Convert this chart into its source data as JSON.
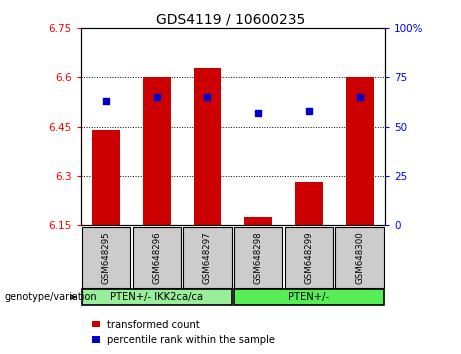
{
  "title": "GDS4119 / 10600235",
  "samples": [
    "GSM648295",
    "GSM648296",
    "GSM648297",
    "GSM648298",
    "GSM648299",
    "GSM648300"
  ],
  "bar_values": [
    6.44,
    6.6,
    6.63,
    6.175,
    6.28,
    6.6
  ],
  "bar_bottom": 6.15,
  "percentile_values": [
    63,
    65,
    65,
    57,
    58,
    65
  ],
  "ylim_left": [
    6.15,
    6.75
  ],
  "ylim_right": [
    0,
    100
  ],
  "yticks_left": [
    6.15,
    6.3,
    6.45,
    6.6,
    6.75
  ],
  "ytick_labels_left": [
    "6.15",
    "6.3",
    "6.45",
    "6.6",
    "6.75"
  ],
  "yticks_right": [
    0,
    25,
    50,
    75,
    100
  ],
  "ytick_labels_right": [
    "0",
    "25",
    "50",
    "75",
    "100%"
  ],
  "bar_color": "#cc0000",
  "dot_color": "#0000cc",
  "group1_label": "PTEN+/- IKK2ca/ca",
  "group2_label": "PTEN+/-",
  "group1_color": "#99ee99",
  "group2_color": "#55ee55",
  "legend_bar_label": "transformed count",
  "legend_dot_label": "percentile rank within the sample",
  "genotype_label": "genotype/variation",
  "title_fontsize": 10,
  "tick_fontsize": 7.5,
  "label_fontsize": 7.5
}
